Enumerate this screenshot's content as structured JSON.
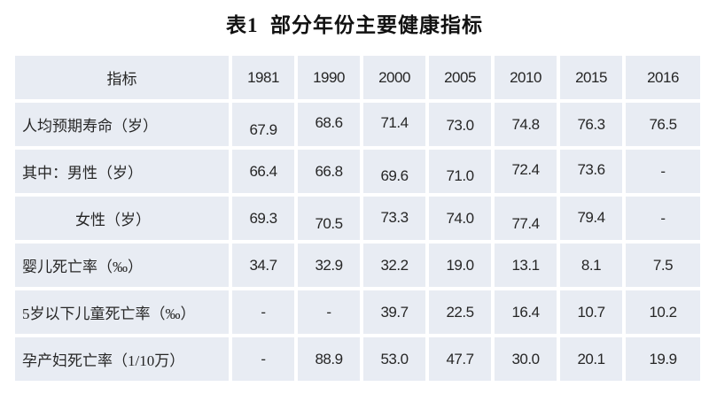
{
  "title": "表1  部分年份主要健康指标",
  "colors": {
    "cell_bg": "#e8ecf3",
    "gap": "#ffffff",
    "text": "#262626",
    "title_text": "#111111"
  },
  "table": {
    "columns": [
      "指标",
      "1981",
      "1990",
      "2000",
      "2005",
      "2010",
      "2015",
      "2016"
    ],
    "rows": [
      {
        "label": "人均预期寿命（岁）",
        "indent": false,
        "values": [
          "67.9",
          "68.6",
          "71.4",
          "73.0",
          "74.8",
          "76.3",
          "76.5"
        ],
        "dy": [
          6,
          -2,
          -2,
          1,
          0,
          0,
          0
        ]
      },
      {
        "label": "其中：男性（岁）",
        "indent": false,
        "values": [
          "66.4",
          "66.8",
          "69.6",
          "71.0",
          "72.4",
          "73.6",
          "-"
        ],
        "dy": [
          0,
          0,
          5,
          5,
          -2,
          -2,
          0
        ]
      },
      {
        "label": "女性（岁）",
        "indent": true,
        "values": [
          "69.3",
          "70.5",
          "73.3",
          "74.0",
          "77.4",
          "79.4",
          "-"
        ],
        "dy": [
          0,
          6,
          -1,
          0,
          6,
          -1,
          0
        ]
      },
      {
        "label": "婴儿死亡率（‰）",
        "indent": false,
        "values": [
          "34.7",
          "32.9",
          "32.2",
          "19.0",
          "13.1",
          "8.1",
          "7.5"
        ],
        "dy": [
          0,
          0,
          0,
          0,
          0,
          0,
          0
        ]
      },
      {
        "label": "5岁以下儿童死亡率（‰）",
        "indent": false,
        "values": [
          "-",
          "-",
          "39.7",
          "22.5",
          "16.4",
          "10.7",
          "10.2"
        ],
        "dy": [
          0,
          0,
          0,
          0,
          0,
          0,
          0
        ]
      },
      {
        "label": "孕产妇死亡率（1/10万）",
        "indent": false,
        "values": [
          "-",
          "88.9",
          "53.0",
          "47.7",
          "30.0",
          "20.1",
          "19.9"
        ],
        "dy": [
          0,
          0,
          0,
          0,
          0,
          0,
          0
        ]
      }
    ]
  },
  "chart_data": {
    "type": "table",
    "title": "表1 部分年份主要健康指标",
    "categories": [
      "1981",
      "1990",
      "2000",
      "2005",
      "2010",
      "2015",
      "2016"
    ],
    "series": [
      {
        "name": "人均预期寿命（岁）",
        "values": [
          67.9,
          68.6,
          71.4,
          73.0,
          74.8,
          76.3,
          76.5
        ]
      },
      {
        "name": "其中：男性（岁）",
        "values": [
          66.4,
          66.8,
          69.6,
          71.0,
          72.4,
          73.6,
          null
        ]
      },
      {
        "name": "女性（岁）",
        "values": [
          69.3,
          70.5,
          73.3,
          74.0,
          77.4,
          79.4,
          null
        ]
      },
      {
        "name": "婴儿死亡率（‰）",
        "values": [
          34.7,
          32.9,
          32.2,
          19.0,
          13.1,
          8.1,
          7.5
        ]
      },
      {
        "name": "5岁以下儿童死亡率（‰）",
        "values": [
          null,
          null,
          39.7,
          22.5,
          16.4,
          10.7,
          10.2
        ]
      },
      {
        "name": "孕产妇死亡率（1/10万）",
        "values": [
          null,
          88.9,
          53.0,
          47.7,
          30.0,
          20.1,
          19.9
        ]
      }
    ]
  }
}
